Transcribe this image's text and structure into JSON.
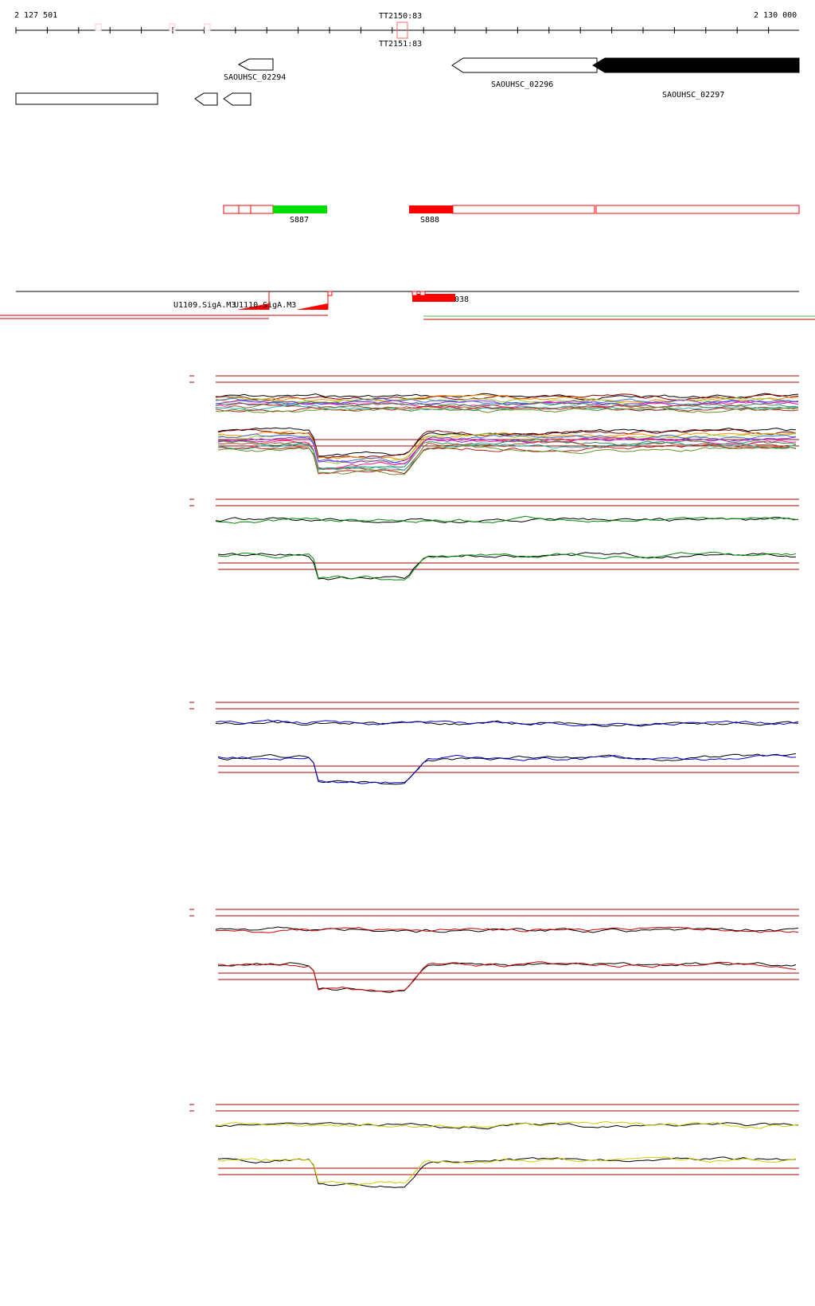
{
  "ruler": {
    "start_label": "2 127 501",
    "end_label": "2 130 000",
    "terminator_labels": [
      "TT2150:83",
      "TT2151:83"
    ]
  },
  "genes": [
    {
      "label": "SAOUHSC_02294",
      "strand": "minus",
      "filled": false
    },
    {
      "label": "SAOUHSC_02296",
      "strand": "minus",
      "filled": false
    },
    {
      "label": "SAOUHSC_02297",
      "strand": "minus",
      "filled": true
    },
    {
      "label": "",
      "strand": "box",
      "filled": false
    },
    {
      "label": "",
      "strand": "minus",
      "filled": false
    },
    {
      "label": "",
      "strand": "minus",
      "filled": false
    }
  ],
  "segments": [
    {
      "label": "S887",
      "color": "#00dd00"
    },
    {
      "label": "S888",
      "color": "#ff0000"
    }
  ],
  "promoters": {
    "labels": [
      "U1109.SigA.M3",
      "U1110.SigA.M3"
    ],
    "right_label": "038",
    "color": "#ff0000"
  },
  "colors": {
    "gene_fill": "#000000",
    "segment_outline": "#ff0000",
    "green_track": "#00aa00",
    "blue_track": "#0000cc",
    "red_track": "#cc0000",
    "yellow_track": "#cccc00",
    "threshold": "#aa0000"
  },
  "profile_panels": [
    {
      "name": "all-conditions",
      "color": "multi"
    },
    {
      "name": "green-conditions",
      "color": "#008800"
    },
    {
      "name": "blue-conditions",
      "color": "#0000cc"
    },
    {
      "name": "red-conditions",
      "color": "#cc0000"
    },
    {
      "name": "yellow-conditions",
      "color": "#cccc00"
    }
  ]
}
